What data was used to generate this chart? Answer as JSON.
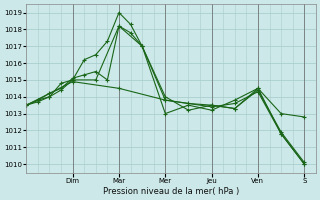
{
  "background_color": "#cce8e8",
  "grid_color": "#aacece",
  "line_color": "#1a6618",
  "xlabel": "Pression niveau de la mer( hPa )",
  "ylim": [
    1009.5,
    1019.5
  ],
  "yticks": [
    1010,
    1011,
    1012,
    1013,
    1014,
    1015,
    1016,
    1017,
    1018,
    1019
  ],
  "day_labels": [
    "Dim",
    "Mar",
    "Mer",
    "Jeu",
    "Ven",
    "S"
  ],
  "day_positions": [
    24,
    48,
    72,
    96,
    120,
    144
  ],
  "xlim": [
    0,
    150
  ],
  "series1_x": [
    0,
    6,
    12,
    18,
    24,
    30,
    36,
    42,
    48,
    54,
    60,
    72,
    84,
    96,
    108,
    120,
    132,
    144
  ],
  "series1_y": [
    1013.5,
    1013.7,
    1014.0,
    1014.8,
    1015.0,
    1016.2,
    1016.5,
    1017.3,
    1019.0,
    1018.3,
    1017.0,
    1013.0,
    1013.5,
    1013.2,
    1013.8,
    1014.5,
    1011.8,
    1010.0
  ],
  "series2_x": [
    0,
    6,
    12,
    18,
    24,
    30,
    36,
    42,
    48,
    54,
    60,
    72,
    84,
    96,
    108,
    120,
    132,
    144
  ],
  "series2_y": [
    1013.5,
    1013.8,
    1014.2,
    1014.5,
    1015.1,
    1015.3,
    1015.5,
    1015.0,
    1018.2,
    1017.8,
    1017.0,
    1013.8,
    1013.6,
    1013.5,
    1013.3,
    1014.5,
    1013.0,
    1012.8
  ],
  "series3_x": [
    0,
    6,
    12,
    18,
    24,
    36,
    48,
    60,
    72,
    84,
    96,
    108,
    120,
    132,
    144
  ],
  "series3_y": [
    1013.5,
    1013.8,
    1014.0,
    1014.4,
    1015.0,
    1015.0,
    1018.2,
    1017.0,
    1014.0,
    1013.2,
    1013.5,
    1013.3,
    1014.4,
    1011.9,
    1010.1
  ],
  "series4_x": [
    0,
    24,
    48,
    72,
    96,
    108,
    120,
    132,
    144
  ],
  "series4_y": [
    1013.5,
    1014.9,
    1014.5,
    1013.8,
    1013.4,
    1013.6,
    1014.3,
    1011.8,
    1010.0
  ]
}
